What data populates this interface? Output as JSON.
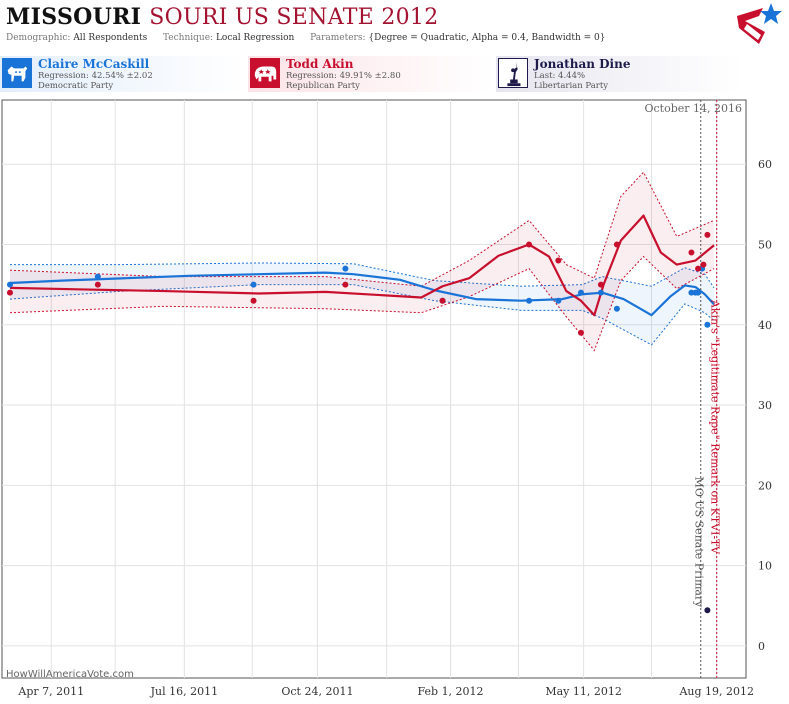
{
  "header": {
    "title_state": "MISSOURI",
    "title_rest": "SOURI US SENATE 2012",
    "demographic_label": "Demographic:",
    "demographic_value": "All Respondents",
    "technique_label": "Technique:",
    "technique_value": "Local Regression",
    "parameters_label": "Parameters:",
    "parameters_value": "{Degree = Quadratic, Alpha = 0.4, Bandwidth = 0}"
  },
  "candidates": [
    {
      "name": "Claire McCaskill",
      "stat": "Regression: 42.54% ±2.02",
      "party": "Democratic Party",
      "color": "#1a73d6"
    },
    {
      "name": "Todd Akin",
      "stat": "Regression: 49.91% ±2.80",
      "party": "Republican Party",
      "color": "#c8102e"
    },
    {
      "name": "Jonathan Dine",
      "stat": "Last: 4.44%",
      "party": "Libertarian Party",
      "color": "#1e1b4b"
    }
  ],
  "watermark": "HowWillAmericaVote.com",
  "chart_data": {
    "type": "line",
    "date_label": "October 14, 2016",
    "xlim": [
      "2011-03-01",
      "2012-09-10"
    ],
    "ylim": [
      -4,
      68
    ],
    "y_ticks": [
      0,
      10,
      20,
      30,
      40,
      50,
      60
    ],
    "grid": true,
    "x_gridlines": [
      "2011-04-07",
      "2011-05-25",
      "2011-07-16",
      "2011-09-05",
      "2011-10-24",
      "2011-12-15",
      "2012-02-01",
      "2012-03-23",
      "2012-05-11",
      "2012-07-01",
      "2012-08-19"
    ],
    "x_ticks": [
      {
        "date": "2011-04-07",
        "label": "Apr 7, 2011"
      },
      {
        "date": "2011-07-16",
        "label": "Jul 16, 2011"
      },
      {
        "date": "2011-10-24",
        "label": "Oct 24, 2011"
      },
      {
        "date": "2012-02-01",
        "label": "Feb 1, 2012"
      },
      {
        "date": "2012-05-11",
        "label": "May 11, 2012"
      },
      {
        "date": "2012-08-19",
        "label": "Aug 19, 2012"
      }
    ],
    "events": [
      {
        "date": "2012-08-07",
        "label": "MO US Senate Primary",
        "color": "#555555"
      },
      {
        "date": "2012-08-19",
        "label": "Akin's \"Legitimate Rape\" Remark on KTVI-TV",
        "color": "#c8102e"
      }
    ],
    "series": [
      {
        "name": "Claire McCaskill",
        "color": "#1a73d6",
        "points": [
          {
            "x": "2011-03-07",
            "y": 45
          },
          {
            "x": "2011-05-12",
            "y": 46
          },
          {
            "x": "2011-09-06",
            "y": 45
          },
          {
            "x": "2011-11-14",
            "y": 47
          },
          {
            "x": "2012-01-26",
            "y": 43
          },
          {
            "x": "2012-03-31",
            "y": 43
          },
          {
            "x": "2012-04-22",
            "y": 43
          },
          {
            "x": "2012-05-09",
            "y": 44
          },
          {
            "x": "2012-05-24",
            "y": 44
          },
          {
            "x": "2012-06-05",
            "y": 42
          },
          {
            "x": "2012-07-31",
            "y": 44
          },
          {
            "x": "2012-08-03",
            "y": 44
          },
          {
            "x": "2012-08-05",
            "y": 44
          },
          {
            "x": "2012-08-08",
            "y": 47
          },
          {
            "x": "2012-08-12",
            "y": 40
          }
        ],
        "line": [
          {
            "x": "2011-03-07",
            "y": 45.2
          },
          {
            "x": "2011-04-15",
            "y": 45.5
          },
          {
            "x": "2011-06-01",
            "y": 45.8
          },
          {
            "x": "2011-07-20",
            "y": 46.1
          },
          {
            "x": "2011-09-10",
            "y": 46.3
          },
          {
            "x": "2011-10-30",
            "y": 46.5
          },
          {
            "x": "2011-11-20",
            "y": 46.3
          },
          {
            "x": "2011-12-25",
            "y": 45.6
          },
          {
            "x": "2012-01-20",
            "y": 44.3
          },
          {
            "x": "2012-02-20",
            "y": 43.2
          },
          {
            "x": "2012-03-25",
            "y": 43.0
          },
          {
            "x": "2012-04-25",
            "y": 43.2
          },
          {
            "x": "2012-05-10",
            "y": 43.8
          },
          {
            "x": "2012-05-25",
            "y": 44.0
          },
          {
            "x": "2012-06-10",
            "y": 43.2
          },
          {
            "x": "2012-07-01",
            "y": 41.2
          },
          {
            "x": "2012-07-15",
            "y": 43.5
          },
          {
            "x": "2012-07-26",
            "y": 44.9
          },
          {
            "x": "2012-08-03",
            "y": 44.7
          },
          {
            "x": "2012-08-10",
            "y": 43.8
          },
          {
            "x": "2012-08-17",
            "y": 42.54
          }
        ],
        "band": [
          {
            "x": "2011-03-07",
            "lo": 43.2,
            "hi": 47.5
          },
          {
            "x": "2011-06-01",
            "lo": 44.2,
            "hi": 47.5
          },
          {
            "x": "2011-09-10",
            "lo": 45.0,
            "hi": 47.7
          },
          {
            "x": "2011-11-20",
            "lo": 45.0,
            "hi": 47.6
          },
          {
            "x": "2012-01-20",
            "lo": 43.0,
            "hi": 45.5
          },
          {
            "x": "2012-03-25",
            "lo": 41.8,
            "hi": 44.8
          },
          {
            "x": "2012-05-10",
            "lo": 41.8,
            "hi": 45.0
          },
          {
            "x": "2012-05-25",
            "lo": 40.8,
            "hi": 46.0
          },
          {
            "x": "2012-07-01",
            "lo": 37.5,
            "hi": 44.8
          },
          {
            "x": "2012-07-26",
            "lo": 42.6,
            "hi": 47.1
          },
          {
            "x": "2012-08-10",
            "lo": 41.5,
            "hi": 46.3
          },
          {
            "x": "2012-08-17",
            "lo": 40.5,
            "hi": 44.6
          }
        ]
      },
      {
        "name": "Todd Akin",
        "color": "#c8102e",
        "points": [
          {
            "x": "2011-03-07",
            "y": 44
          },
          {
            "x": "2011-05-12",
            "y": 45
          },
          {
            "x": "2011-09-06",
            "y": 43
          },
          {
            "x": "2011-11-14",
            "y": 45
          },
          {
            "x": "2012-01-26",
            "y": 43
          },
          {
            "x": "2012-03-31",
            "y": 50
          },
          {
            "x": "2012-04-22",
            "y": 48
          },
          {
            "x": "2012-05-09",
            "y": 39
          },
          {
            "x": "2012-05-24",
            "y": 45
          },
          {
            "x": "2012-06-05",
            "y": 50
          },
          {
            "x": "2012-07-31",
            "y": 49
          },
          {
            "x": "2012-08-05",
            "y": 47
          },
          {
            "x": "2012-08-09",
            "y": 47.5
          },
          {
            "x": "2012-08-12",
            "y": 51.2
          }
        ],
        "line": [
          {
            "x": "2011-03-07",
            "y": 44.6
          },
          {
            "x": "2011-05-01",
            "y": 44.4
          },
          {
            "x": "2011-07-01",
            "y": 44.2
          },
          {
            "x": "2011-09-10",
            "y": 43.9
          },
          {
            "x": "2011-10-30",
            "y": 44.1
          },
          {
            "x": "2011-12-10",
            "y": 43.7
          },
          {
            "x": "2012-01-10",
            "y": 43.4
          },
          {
            "x": "2012-01-26",
            "y": 44.8
          },
          {
            "x": "2012-02-15",
            "y": 45.8
          },
          {
            "x": "2012-03-08",
            "y": 48.6
          },
          {
            "x": "2012-03-31",
            "y": 50.0
          },
          {
            "x": "2012-04-15",
            "y": 48.5
          },
          {
            "x": "2012-04-28",
            "y": 44.2
          },
          {
            "x": "2012-05-09",
            "y": 43.0
          },
          {
            "x": "2012-05-19",
            "y": 41.2
          },
          {
            "x": "2012-05-26",
            "y": 45.0
          },
          {
            "x": "2012-06-08",
            "y": 50.5
          },
          {
            "x": "2012-06-25",
            "y": 53.6
          },
          {
            "x": "2012-07-08",
            "y": 49.0
          },
          {
            "x": "2012-07-20",
            "y": 47.5
          },
          {
            "x": "2012-08-03",
            "y": 48.0
          },
          {
            "x": "2012-08-17",
            "y": 49.91
          }
        ],
        "band": [
          {
            "x": "2011-03-07",
            "lo": 41.5,
            "hi": 46.8
          },
          {
            "x": "2011-07-01",
            "lo": 42.3,
            "hi": 46.0
          },
          {
            "x": "2011-10-30",
            "lo": 42.0,
            "hi": 46.0
          },
          {
            "x": "2012-01-10",
            "lo": 41.5,
            "hi": 44.8
          },
          {
            "x": "2012-02-15",
            "lo": 43.5,
            "hi": 48.0
          },
          {
            "x": "2012-03-31",
            "lo": 47.0,
            "hi": 53.0
          },
          {
            "x": "2012-04-28",
            "lo": 41.0,
            "hi": 47.5
          },
          {
            "x": "2012-05-19",
            "lo": 36.8,
            "hi": 45.8
          },
          {
            "x": "2012-06-08",
            "lo": 45.5,
            "hi": 56.0
          },
          {
            "x": "2012-06-25",
            "lo": 48.5,
            "hi": 59.0
          },
          {
            "x": "2012-07-20",
            "lo": 44.5,
            "hi": 51.0
          },
          {
            "x": "2012-08-17",
            "lo": 47.0,
            "hi": 53.0
          }
        ]
      },
      {
        "name": "Jonathan Dine",
        "color": "#1e1b4b",
        "points": [
          {
            "x": "2012-08-12",
            "y": 4.44
          }
        ]
      }
    ]
  }
}
